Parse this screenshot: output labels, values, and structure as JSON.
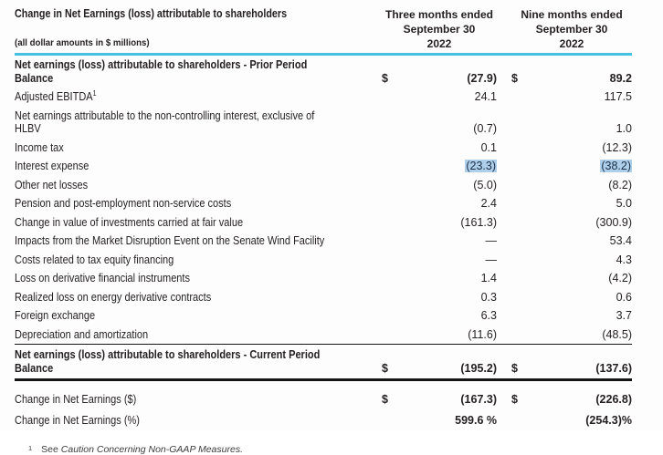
{
  "header": {
    "title": "Change in Net Earnings (loss) attributable to shareholders",
    "subtitle": "(all dollar amounts in $ millions)",
    "columns": [
      {
        "lines": [
          "Three months ended",
          "September 30",
          "2022"
        ]
      },
      {
        "lines": [
          "Nine months ended",
          "September 30",
          "2022"
        ]
      }
    ]
  },
  "table": {
    "rows": [
      {
        "label": "Net earnings (loss) attributable to shareholders - Prior Period Balance",
        "bold": true,
        "d1": "$",
        "v1": "(27.9)",
        "d2": "$",
        "v2": "89.2"
      },
      {
        "label": "Adjusted EBITDA",
        "sup": "1",
        "v1": "24.1",
        "v2": "117.5"
      },
      {
        "label": "Net earnings attributable to the non-controlling interest, exclusive of HLBV",
        "v1": "(0.7)",
        "v2": "1.0"
      },
      {
        "label": "Income tax",
        "v1": "0.1",
        "v2": "(12.3)"
      },
      {
        "label": "Interest expense",
        "v1": "(23.3)",
        "v2": "(38.2)",
        "highlight": true
      },
      {
        "label": "Other net losses",
        "v1": "(5.0)",
        "v2": "(8.2)"
      },
      {
        "label": "Pension and post-employment non-service costs",
        "v1": "2.4",
        "v2": "5.0"
      },
      {
        "label": "Change in value of investments carried at fair value",
        "v1": "(161.3)",
        "v2": "(300.9)"
      },
      {
        "label": "Impacts from the Market Disruption Event on the Senate Wind Facility",
        "v1": "—",
        "v2": "53.4"
      },
      {
        "label": "Costs related to tax equity financing",
        "v1": "—",
        "v2": "4.3"
      },
      {
        "label": "Loss on derivative financial instruments",
        "v1": "1.4",
        "v2": "(4.2)"
      },
      {
        "label": "Realized loss on energy derivative contracts",
        "v1": "0.3",
        "v2": "0.6"
      },
      {
        "label": "Foreign exchange",
        "v1": "6.3",
        "v2": "3.7"
      },
      {
        "label": "Depreciation and amortization",
        "v1": "(11.6)",
        "v2": "(48.5)"
      },
      {
        "label": "Net earnings (loss) attributable to shareholders - Current Period Balance",
        "bold": true,
        "d1": "$",
        "v1": "(195.2)",
        "d2": "$",
        "v2": "(137.6)",
        "rule_top": true,
        "rule_bottom": true
      }
    ],
    "summary_rows": [
      {
        "label": "Change in Net Earnings ($)",
        "d1": "$",
        "v1": "(167.3)",
        "d2": "$",
        "v2": "(226.8)",
        "value_bold": true
      },
      {
        "label": "Change in Net Earnings (%)",
        "v1": "599.6 %",
        "v2": "(254.3)%",
        "value_bold": true
      }
    ]
  },
  "footnote": {
    "marker": "1",
    "prefix": "See ",
    "reference": "Caution Concerning Non-GAAP Measures."
  },
  "colors": {
    "accent_line": "#45C2E3",
    "highlight_bg": "#AECFE9"
  }
}
